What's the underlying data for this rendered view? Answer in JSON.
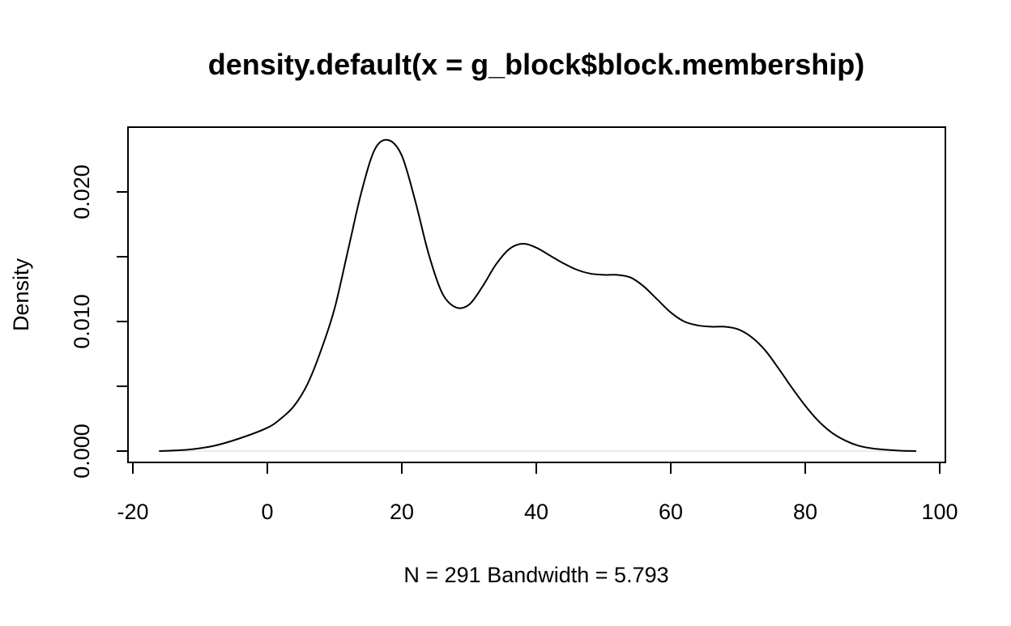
{
  "chart_data": {
    "type": "line",
    "title": "density.default(x = g_block$block.membership)",
    "xlabel": "N = 291   Bandwidth = 5.793",
    "ylabel": "Density",
    "xlim": [
      -20,
      100
    ],
    "ylim": [
      0,
      0.025
    ],
    "x_ticks": [
      -20,
      0,
      20,
      40,
      60,
      80,
      100
    ],
    "x_tick_labels": [
      "-20",
      "0",
      "20",
      "40",
      "60",
      "80",
      "100"
    ],
    "y_ticks": [
      0.0,
      0.005,
      0.01,
      0.015,
      0.02
    ],
    "y_tick_labels": [
      "0.000",
      "",
      "0.010",
      "",
      "0.020"
    ],
    "grid": false,
    "legend": "none",
    "colors": {
      "line": "#000000",
      "baseline": "#e6e6e6"
    },
    "series": [
      {
        "x": [
          -16.1,
          -12,
          -8,
          -4,
          0,
          2,
          4,
          6,
          8,
          10,
          12,
          14,
          16,
          18,
          20,
          22,
          24,
          26,
          28,
          30,
          32,
          34,
          36,
          38,
          40,
          42,
          44,
          46,
          48,
          50,
          52,
          54,
          56,
          58,
          60,
          62,
          64,
          66,
          68,
          70,
          72,
          74,
          76,
          78,
          80,
          82,
          84,
          86,
          88,
          90,
          92,
          94,
          96.5
        ],
        "y": [
          0.0,
          0.0001,
          0.0004,
          0.001,
          0.0018,
          0.0025,
          0.0035,
          0.0052,
          0.0078,
          0.011,
          0.0155,
          0.02,
          0.0233,
          0.024,
          0.0228,
          0.0193,
          0.0152,
          0.0122,
          0.0111,
          0.0113,
          0.0127,
          0.0144,
          0.0156,
          0.016,
          0.0157,
          0.0151,
          0.0145,
          0.014,
          0.0137,
          0.0136,
          0.0136,
          0.0134,
          0.0127,
          0.0117,
          0.0107,
          0.01,
          0.0097,
          0.0096,
          0.0096,
          0.0094,
          0.0088,
          0.0078,
          0.0064,
          0.0049,
          0.0035,
          0.0023,
          0.0014,
          0.0008,
          0.0004,
          0.0002,
          0.0001,
          3e-05,
          0.0
        ]
      }
    ]
  }
}
